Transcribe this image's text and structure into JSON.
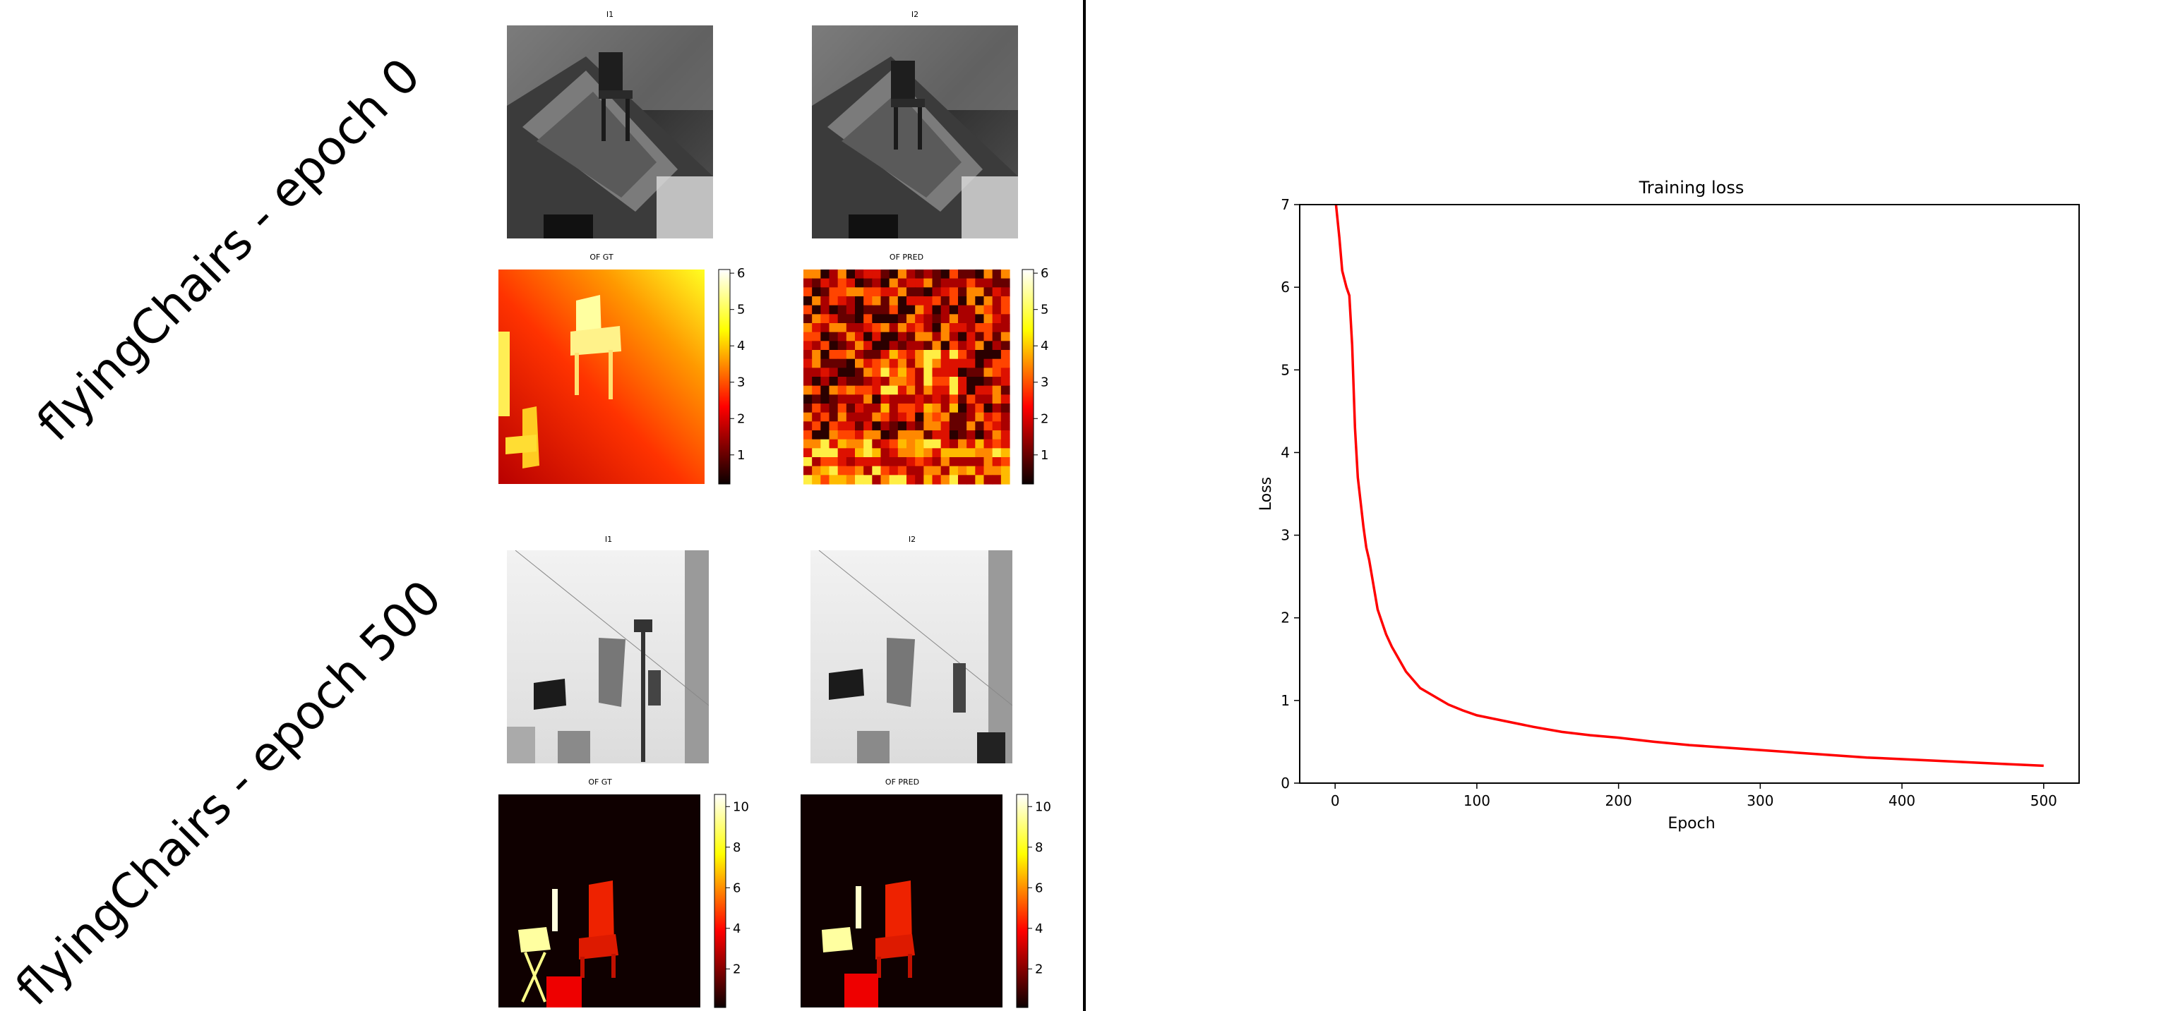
{
  "row_labels": [
    "flyingChairs - epoch 0",
    "flyingChairs - epoch 500"
  ],
  "panels": {
    "epoch0": {
      "i1": "I1",
      "i2": "I2",
      "gt": "OF GT",
      "pred": "OF PRED"
    },
    "epoch500": {
      "i1": "I1",
      "i2": "I2",
      "gt": "OF GT",
      "pred": "OF PRED"
    }
  },
  "colorbars": {
    "epoch0_gt": {
      "ticks": [
        1,
        2,
        3,
        4,
        5,
        6
      ],
      "range": [
        0.2,
        6.1
      ]
    },
    "epoch0_pred": {
      "ticks": [
        1,
        2,
        3,
        4,
        5,
        6
      ],
      "range": [
        0.2,
        6.1
      ]
    },
    "epoch500_gt": {
      "ticks": [
        2,
        4,
        6,
        8,
        10
      ],
      "range": [
        0.1,
        10.6
      ]
    },
    "epoch500_pred": {
      "ticks": [
        2,
        4,
        6,
        8,
        10
      ],
      "range": [
        0.1,
        10.6
      ]
    }
  },
  "colors": {
    "loss_line": "#ff0000",
    "divider": "#000000"
  },
  "chart_data": {
    "type": "line",
    "title": "Training loss",
    "xlabel": "Epoch",
    "ylabel": "Loss",
    "xlim": [
      -25,
      525
    ],
    "ylim": [
      0,
      7
    ],
    "xticks": [
      0,
      100,
      200,
      300,
      400,
      500
    ],
    "yticks": [
      0,
      1,
      2,
      3,
      4,
      5,
      6,
      7
    ],
    "grid": false,
    "series": [
      {
        "color": "#ff0000",
        "x": [
          0,
          3,
          5,
          8,
          10,
          12,
          14,
          16,
          18,
          20,
          22,
          24,
          26,
          28,
          30,
          33,
          36,
          40,
          45,
          50,
          60,
          70,
          80,
          90,
          100,
          120,
          140,
          160,
          180,
          200,
          225,
          250,
          275,
          300,
          325,
          350,
          375,
          400,
          425,
          450,
          475,
          500
        ],
        "y": [
          7.1,
          6.6,
          6.2,
          6.0,
          5.9,
          5.3,
          4.3,
          3.7,
          3.4,
          3.1,
          2.85,
          2.7,
          2.5,
          2.3,
          2.1,
          1.95,
          1.8,
          1.65,
          1.5,
          1.35,
          1.15,
          1.05,
          0.95,
          0.88,
          0.82,
          0.75,
          0.68,
          0.62,
          0.58,
          0.55,
          0.5,
          0.46,
          0.43,
          0.4,
          0.37,
          0.34,
          0.31,
          0.29,
          0.27,
          0.25,
          0.23,
          0.21
        ]
      }
    ]
  }
}
